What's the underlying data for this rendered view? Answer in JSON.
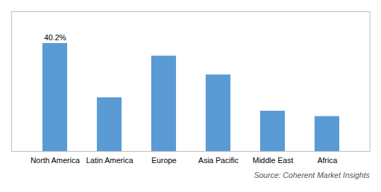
{
  "chart_data": {
    "type": "bar",
    "categories": [
      "North America",
      "Latin America",
      "Europe",
      "Asia Pacific",
      "Middle East",
      "Africa"
    ],
    "values": [
      40.2,
      20.0,
      35.5,
      28.5,
      15.0,
      13.0
    ],
    "color": "#5b9bd5",
    "ylim": [
      0,
      52
    ],
    "grid": false,
    "tick_labels": "x",
    "annotations": [
      {
        "text": "40.2%",
        "x": "North America",
        "y": 40.2
      }
    ],
    "caption": "Source: Coherent Market Insights"
  }
}
